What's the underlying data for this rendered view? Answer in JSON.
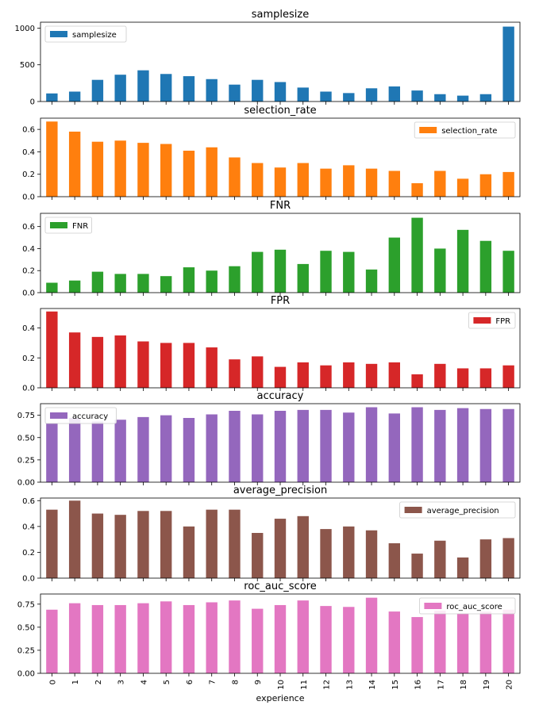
{
  "chart_data": {
    "type": "bar",
    "xlabel": "experience",
    "categories": [
      "0",
      "1",
      "2",
      "3",
      "4",
      "5",
      "6",
      "7",
      "8",
      "9",
      "10",
      "11",
      "12",
      "13",
      "14",
      "15",
      "16",
      "17",
      "18",
      "19",
      "20"
    ],
    "panels": [
      {
        "title": "samplesize",
        "legend": "samplesize",
        "legend_position": "top-left",
        "color": "#1f77b4",
        "ylim": [
          0,
          1080
        ],
        "yticks": [
          0,
          500,
          1000
        ],
        "tick_labels": [
          "0",
          "500",
          "1000"
        ],
        "values": [
          110,
          135,
          295,
          365,
          425,
          375,
          345,
          305,
          230,
          295,
          265,
          190,
          135,
          115,
          180,
          205,
          150,
          100,
          80,
          100,
          1020
        ]
      },
      {
        "title": "selection_rate",
        "legend": "selection_rate",
        "legend_position": "top-right",
        "color": "#ff7f0e",
        "ylim": [
          0,
          0.7
        ],
        "yticks": [
          0,
          0.2,
          0.4,
          0.6
        ],
        "tick_labels": [
          "0.0",
          "0.2",
          "0.4",
          "0.6"
        ],
        "values": [
          0.67,
          0.58,
          0.49,
          0.5,
          0.48,
          0.47,
          0.41,
          0.44,
          0.35,
          0.3,
          0.26,
          0.3,
          0.25,
          0.28,
          0.25,
          0.23,
          0.12,
          0.23,
          0.16,
          0.2,
          0.22
        ]
      },
      {
        "title": "FNR",
        "legend": "FNR",
        "legend_position": "top-left",
        "color": "#2ca02c",
        "ylim": [
          0,
          0.72
        ],
        "yticks": [
          0,
          0.2,
          0.4,
          0.6
        ],
        "tick_labels": [
          "0.0",
          "0.2",
          "0.4",
          "0.6"
        ],
        "values": [
          0.09,
          0.11,
          0.19,
          0.17,
          0.17,
          0.15,
          0.23,
          0.2,
          0.24,
          0.37,
          0.39,
          0.26,
          0.38,
          0.37,
          0.21,
          0.5,
          0.68,
          0.4,
          0.57,
          0.47,
          0.38
        ]
      },
      {
        "title": "FPR",
        "legend": "FPR",
        "legend_position": "top-right",
        "color": "#d62728",
        "ylim": [
          0,
          0.53
        ],
        "yticks": [
          0,
          0.2,
          0.4
        ],
        "tick_labels": [
          "0.0",
          "0.2",
          "0.4"
        ],
        "values": [
          0.51,
          0.37,
          0.34,
          0.35,
          0.31,
          0.3,
          0.3,
          0.27,
          0.19,
          0.21,
          0.14,
          0.17,
          0.15,
          0.17,
          0.16,
          0.17,
          0.09,
          0.16,
          0.13,
          0.13,
          0.15
        ]
      },
      {
        "title": "accuracy",
        "legend": "accuracy",
        "legend_position": "top-left",
        "color": "#9467bd",
        "ylim": [
          0,
          0.88
        ],
        "yticks": [
          0,
          0.25,
          0.5,
          0.75
        ],
        "tick_labels": [
          "0.00",
          "0.25",
          "0.50",
          "0.75"
        ],
        "values": [
          0.66,
          0.72,
          0.68,
          0.7,
          0.73,
          0.75,
          0.72,
          0.76,
          0.8,
          0.76,
          0.8,
          0.81,
          0.81,
          0.78,
          0.84,
          0.77,
          0.84,
          0.81,
          0.83,
          0.82,
          0.82
        ]
      },
      {
        "title": "average_precision",
        "legend": "average_precision",
        "legend_position": "top-right",
        "color": "#8c564b",
        "ylim": [
          0,
          0.62
        ],
        "yticks": [
          0,
          0.2,
          0.4,
          0.6
        ],
        "tick_labels": [
          "0.0",
          "0.2",
          "0.4",
          "0.6"
        ],
        "values": [
          0.53,
          0.6,
          0.5,
          0.49,
          0.52,
          0.52,
          0.4,
          0.53,
          0.53,
          0.35,
          0.46,
          0.48,
          0.38,
          0.4,
          0.37,
          0.27,
          0.19,
          0.29,
          0.16,
          0.3,
          0.31
        ]
      },
      {
        "title": "roc_auc_score",
        "legend": "roc_auc_score",
        "legend_position": "top-right",
        "color": "#e377c2",
        "ylim": [
          0,
          0.86
        ],
        "yticks": [
          0,
          0.25,
          0.5,
          0.75
        ],
        "tick_labels": [
          "0.00",
          "0.25",
          "0.50",
          "0.75"
        ],
        "values": [
          0.69,
          0.76,
          0.74,
          0.74,
          0.76,
          0.78,
          0.74,
          0.77,
          0.79,
          0.7,
          0.74,
          0.79,
          0.73,
          0.72,
          0.82,
          0.67,
          0.61,
          0.68,
          0.65,
          0.67,
          0.69
        ]
      }
    ]
  }
}
